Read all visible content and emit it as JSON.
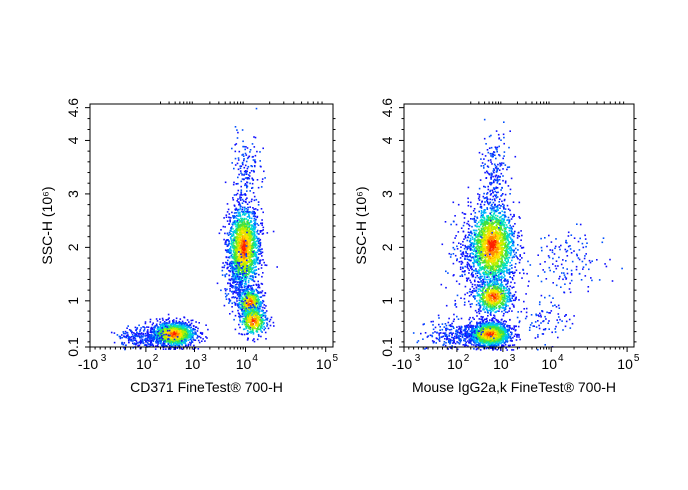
{
  "chart_data": [
    {
      "type": "scatter",
      "subtype": "flow-cytometry density dot plot",
      "xlabel": "CD371 FineTest® 700-H",
      "ylabel": "SSC-H",
      "yunit": "(10⁶)",
      "x_scale": "biexponential",
      "x_ticks": [
        "-10",
        "10",
        "10",
        "10",
        "10",
        "10"
      ],
      "x_tick_exponents": [
        "3",
        "2",
        "3",
        "4",
        "5"
      ],
      "y_scale": "linear (compressed near zero)",
      "y_ticks": [
        "0.1",
        "1",
        "2",
        "3",
        "4",
        "4.6"
      ],
      "xlim": [
        -1000,
        100000
      ],
      "ylim": [
        0.1,
        4.6
      ],
      "color_scale": "blue-cyan-green-yellow-red (low to high density)",
      "populations": [
        {
          "x_center": 350,
          "y_center": 0.32,
          "density": "high"
        },
        {
          "x_center": 8000,
          "y_center": 1.9,
          "density": "high"
        },
        {
          "x_center": 9000,
          "y_center": 0.85,
          "density": "medium"
        },
        {
          "x_center": 12000,
          "y_center": 0.5,
          "density": "medium"
        }
      ]
    },
    {
      "type": "scatter",
      "subtype": "flow-cytometry density dot plot",
      "xlabel": "Mouse IgG2a,k FineTest® 700-H",
      "ylabel": "SSC-H",
      "yunit": "(10⁶)",
      "x_scale": "biexponential",
      "x_ticks": [
        "-10",
        "10",
        "10",
        "10",
        "10",
        "10"
      ],
      "x_tick_exponents": [
        "3",
        "2",
        "3",
        "4",
        "5"
      ],
      "y_scale": "linear (compressed near zero)",
      "y_ticks": [
        "0.1",
        "1",
        "2",
        "3",
        "4",
        "4.6"
      ],
      "xlim": [
        -1000,
        100000
      ],
      "ylim": [
        0.1,
        4.6
      ],
      "color_scale": "blue-cyan-green-yellow-red (low to high density)",
      "populations": [
        {
          "x_center": 450,
          "y_center": 0.32,
          "density": "high"
        },
        {
          "x_center": 500,
          "y_center": 1.95,
          "density": "high"
        },
        {
          "x_center": 500,
          "y_center": 0.9,
          "density": "medium"
        },
        {
          "x_center": 30000,
          "y_center": 1.7,
          "density": "low"
        }
      ]
    }
  ],
  "colors": {
    "density_low": "#1a1aff",
    "density_mid_low": "#00c8ff",
    "density_mid": "#3cdc3c",
    "density_mid_high": "#ffe600",
    "density_high": "#ff1a00",
    "axis": "#000000"
  }
}
